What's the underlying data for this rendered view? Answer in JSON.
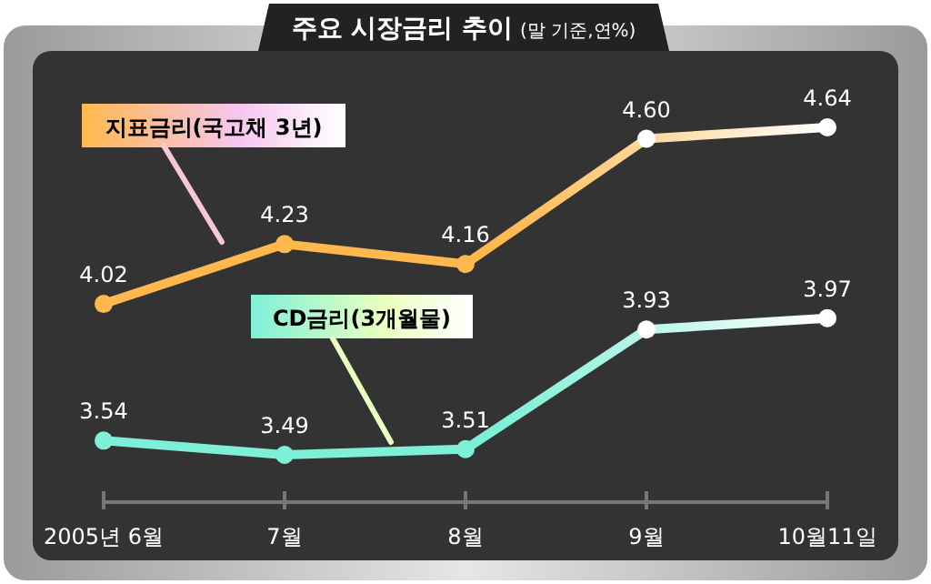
{
  "chart_data": {
    "type": "line",
    "title": "주요 시장금리 추이",
    "subtitle": "(말 기준,연%)",
    "categories": [
      "2005년 6월",
      "7월",
      "8월",
      "9월",
      "10월11일"
    ],
    "series": [
      {
        "name": "지표금리(국고채 3년)",
        "color": "#ffb84d",
        "values": [
          4.02,
          4.23,
          4.16,
          4.6,
          4.64
        ],
        "value_labels": [
          "4.02",
          "4.23",
          "4.16",
          "4.60",
          "4.64"
        ]
      },
      {
        "name": "CD금리(3개월물)",
        "color": "#7ff0d8",
        "values": [
          3.54,
          3.49,
          3.51,
          3.93,
          3.97
        ],
        "value_labels": [
          "3.54",
          "3.49",
          "3.51",
          "3.93",
          "3.97"
        ]
      }
    ],
    "marker": "circle",
    "legend": false
  }
}
